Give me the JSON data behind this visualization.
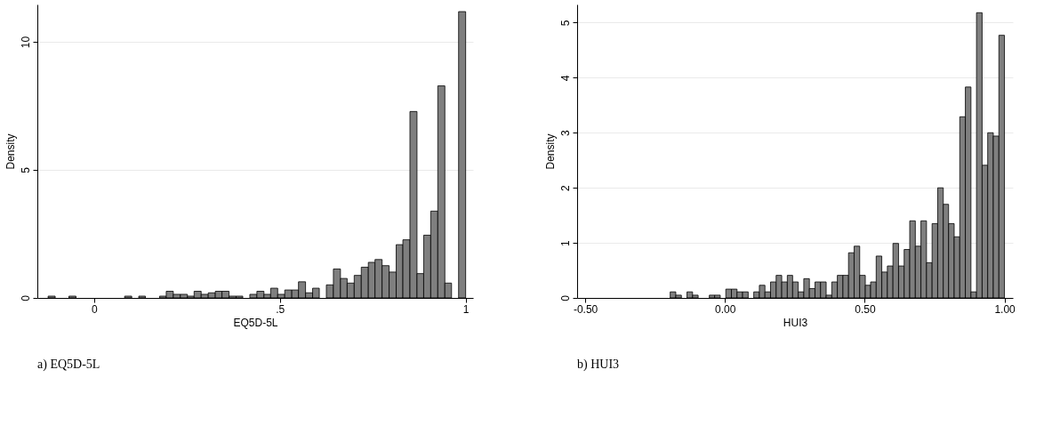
{
  "chart_data": [
    {
      "type": "histogram",
      "xlabel": "EQ5D-5L",
      "ylabel": "Density",
      "color": "#7f7f7f",
      "grid": "y",
      "xlim": [
        -0.153,
        1.02
      ],
      "ylim": [
        0,
        11.46
      ],
      "xticks": [
        0,
        {
          "value": 0.5,
          "label": ".5"
        },
        1
      ],
      "yticks": [
        0,
        5,
        10
      ],
      "bins": [
        -0.124,
        -0.105,
        -0.087,
        -0.068,
        -0.049,
        -0.03,
        -0.012,
        0.007,
        0.026,
        0.045,
        0.063,
        0.082,
        0.101,
        0.12,
        0.138,
        0.157,
        0.176,
        0.194,
        0.213,
        0.232,
        0.251,
        0.269,
        0.288,
        0.307,
        0.326,
        0.344,
        0.363,
        0.382,
        0.4,
        0.419,
        0.438,
        0.457,
        0.475,
        0.494,
        0.513,
        0.532,
        0.55,
        0.569,
        0.588,
        0.606,
        0.625,
        0.644,
        0.663,
        0.681,
        0.7,
        0.719,
        0.738,
        0.756,
        0.775,
        0.794,
        0.813,
        0.831,
        0.85,
        0.869,
        0.887,
        0.906,
        0.925,
        0.944,
        0.962,
        0.981,
        1.0
      ],
      "values": [
        0.07,
        0,
        0,
        0.07,
        0,
        0,
        0,
        0,
        0,
        0,
        0,
        0.07,
        0,
        0.07,
        0,
        0,
        0.07,
        0.26,
        0.14,
        0.14,
        0.07,
        0.26,
        0.14,
        0.2,
        0.26,
        0.26,
        0.07,
        0.07,
        0,
        0.14,
        0.26,
        0.14,
        0.38,
        0.14,
        0.31,
        0.31,
        0.63,
        0.2,
        0.38,
        0,
        0.51,
        1.13,
        0.76,
        0.58,
        0.88,
        1.2,
        1.39,
        1.5,
        1.26,
        1.01,
        2.08,
        2.27,
        7.28,
        0.95,
        2.45,
        3.39,
        8.28,
        0.58,
        0,
        11.18
      ],
      "annotations": [
        "a)  EQ5D-5L"
      ]
    },
    {
      "type": "histogram",
      "xlabel": "HUI3",
      "ylabel": "Density",
      "color": "#7f7f7f",
      "grid": "y",
      "xlim": [
        -0.529,
        1.03
      ],
      "ylim": [
        0,
        5.33
      ],
      "xticks": [
        {
          "value": -0.5,
          "label": "-0.50"
        },
        {
          "value": 0,
          "label": "0.00"
        },
        {
          "value": 0.5,
          "label": "0.50"
        },
        {
          "value": 1,
          "label": "1.00"
        }
      ],
      "yticks": [
        0,
        1,
        2,
        3,
        4,
        5
      ],
      "bins": [
        -0.196,
        -0.176,
        -0.156,
        -0.136,
        -0.116,
        -0.096,
        -0.076,
        -0.056,
        -0.037,
        -0.017,
        0.003,
        0.023,
        0.043,
        0.063,
        0.083,
        0.103,
        0.123,
        0.143,
        0.163,
        0.183,
        0.203,
        0.223,
        0.242,
        0.262,
        0.282,
        0.302,
        0.322,
        0.342,
        0.362,
        0.382,
        0.402,
        0.422,
        0.442,
        0.462,
        0.482,
        0.502,
        0.521,
        0.541,
        0.561,
        0.581,
        0.601,
        0.621,
        0.641,
        0.661,
        0.681,
        0.701,
        0.721,
        0.741,
        0.761,
        0.781,
        0.8,
        0.82,
        0.84,
        0.86,
        0.88,
        0.9,
        0.92,
        0.94,
        0.96,
        0.98,
        1.0
      ],
      "values": [
        0.11,
        0.05,
        0,
        0.11,
        0.05,
        0,
        0,
        0.05,
        0.05,
        0,
        0.16,
        0.16,
        0.11,
        0.11,
        0,
        0.11,
        0.23,
        0.11,
        0.29,
        0.41,
        0.29,
        0.41,
        0.29,
        0.11,
        0.35,
        0.17,
        0.29,
        0.29,
        0.05,
        0.29,
        0.41,
        0.41,
        0.82,
        0.94,
        0.41,
        0.23,
        0.29,
        0.76,
        0.47,
        0.58,
        0.99,
        0.58,
        0.88,
        1.4,
        0.94,
        1.4,
        0.64,
        1.35,
        2.0,
        1.7,
        1.35,
        1.11,
        3.29,
        3.83,
        0.11,
        5.18,
        2.41,
        3.0,
        2.94,
        4.77
      ],
      "annotations": [
        "b)  HUI3"
      ]
    }
  ]
}
